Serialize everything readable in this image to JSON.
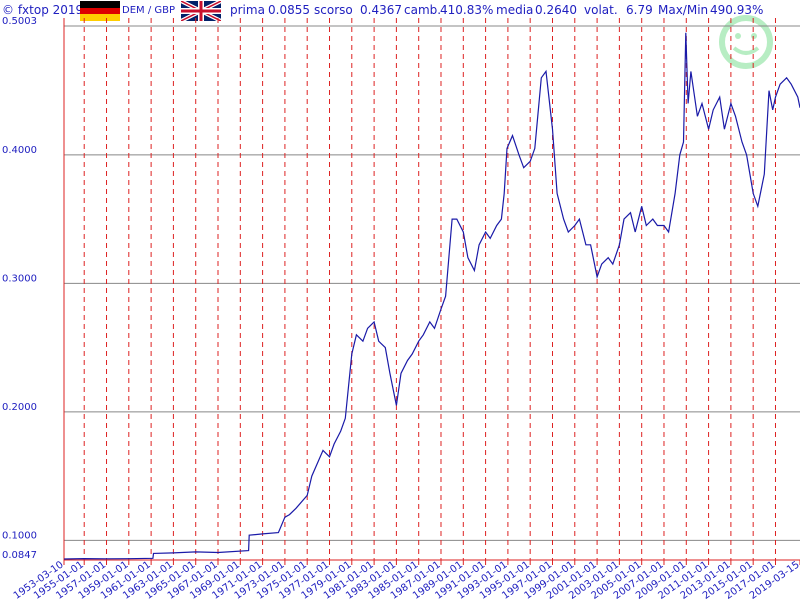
{
  "header": {
    "copyright": "© fxtop 2019",
    "pair": "DEM / GBP",
    "first_label": "prima",
    "first_value": "0.0855",
    "last_label": "scorso",
    "last_value": "0.4367",
    "change_label": "camb.",
    "change_value": "410.83%",
    "mean_label": "media",
    "mean_value": "0.2640",
    "volat_label": "volat.",
    "volat_value": "6.79",
    "maxmin_label": "Max/Min",
    "maxmin_value": "490.93%"
  },
  "colors": {
    "line": "#1a1aa8",
    "text": "#2020c0",
    "vgrid": "#dd2222",
    "hgrid": "#888888"
  },
  "icons": {
    "flag_left": "germany-flag-icon",
    "flag_right": "uk-flag-icon",
    "watermark": "fxtop-smiley-watermark"
  },
  "chart_data": {
    "type": "line",
    "title": "",
    "xlabel": "",
    "ylabel": "",
    "series": [
      {
        "x": [
          "1953-03-10",
          "1955-01-01",
          "1957-01-01",
          "1959-01-01",
          "1961-03-01",
          "1961-03-20",
          "1963-01-01",
          "1965-01-01",
          "1967-01-01",
          "1969-10-01",
          "1969-10-20",
          "1971-01-01",
          "1972-06-01",
          "1973-01-01",
          "1973-06-01",
          "1974-01-01",
          "1975-01-01",
          "1975-06-01",
          "1976-06-01",
          "1977-01-01",
          "1977-06-01",
          "1978-01-01",
          "1978-06-01",
          "1979-01-01",
          "1979-06-01",
          "1980-01-01",
          "1980-06-01",
          "1981-01-01",
          "1981-06-01",
          "1982-01-01",
          "1982-06-01",
          "1983-01-01",
          "1983-06-01",
          "1984-01-01",
          "1984-06-01",
          "1985-01-01",
          "1985-06-01",
          "1986-01-01",
          "1986-06-01",
          "1987-01-01",
          "1987-06-01",
          "1988-01-01",
          "1988-06-01",
          "1989-01-01",
          "1989-06-01",
          "1990-01-01",
          "1990-06-01",
          "1991-01-01",
          "1991-06-01",
          "1992-01-01",
          "1992-06-01",
          "1992-09-01",
          "1992-12-01",
          "1993-06-01",
          "1994-01-01",
          "1994-06-01",
          "1995-01-01",
          "1995-06-01",
          "1996-01-01",
          "1996-06-01",
          "1997-01-01",
          "1997-06-01",
          "1998-01-01",
          "1998-06-01",
          "1999-01-01",
          "1999-06-01",
          "2000-01-01",
          "2000-06-01",
          "2001-01-01",
          "2001-06-01",
          "2002-01-01",
          "2002-06-01",
          "2003-01-01",
          "2003-06-01",
          "2004-01-01",
          "2004-06-01",
          "2005-01-01",
          "2005-06-01",
          "2006-01-01",
          "2006-06-01",
          "2007-01-01",
          "2007-06-01",
          "2008-01-01",
          "2008-06-01",
          "2008-10-01",
          "2008-12-15",
          "2009-03-01",
          "2009-06-01",
          "2010-01-01",
          "2010-06-01",
          "2011-01-01",
          "2011-06-01",
          "2012-01-01",
          "2012-06-01",
          "2013-01-01",
          "2013-06-01",
          "2014-01-01",
          "2014-06-01",
          "2015-01-01",
          "2015-06-01",
          "2016-01-01",
          "2016-06-01",
          "2016-10-01",
          "2017-01-01",
          "2017-06-01",
          "2018-01-01",
          "2018-06-01",
          "2019-01-01",
          "2019-03-15"
        ],
        "values": [
          0.0855,
          0.0858,
          0.0856,
          0.0857,
          0.086,
          0.0898,
          0.0902,
          0.091,
          0.0905,
          0.092,
          0.104,
          0.105,
          0.106,
          0.118,
          0.12,
          0.125,
          0.135,
          0.15,
          0.17,
          0.165,
          0.175,
          0.185,
          0.195,
          0.245,
          0.26,
          0.255,
          0.265,
          0.27,
          0.255,
          0.25,
          0.23,
          0.205,
          0.23,
          0.24,
          0.245,
          0.255,
          0.26,
          0.27,
          0.265,
          0.28,
          0.29,
          0.35,
          0.35,
          0.34,
          0.32,
          0.31,
          0.33,
          0.34,
          0.335,
          0.345,
          0.35,
          0.37,
          0.405,
          0.415,
          0.4,
          0.39,
          0.395,
          0.405,
          0.46,
          0.465,
          0.42,
          0.37,
          0.35,
          0.34,
          0.345,
          0.35,
          0.33,
          0.33,
          0.305,
          0.315,
          0.32,
          0.315,
          0.33,
          0.35,
          0.355,
          0.34,
          0.36,
          0.345,
          0.35,
          0.345,
          0.345,
          0.34,
          0.37,
          0.4,
          0.41,
          0.495,
          0.44,
          0.465,
          0.43,
          0.44,
          0.42,
          0.435,
          0.445,
          0.42,
          0.44,
          0.43,
          0.41,
          0.4,
          0.37,
          0.36,
          0.385,
          0.45,
          0.435,
          0.445,
          0.455,
          0.46,
          0.455,
          0.445,
          0.4367
        ]
      }
    ],
    "x_ticks": [
      "1953-03-10",
      "1955-01-01",
      "1957-01-01",
      "1959-01-01",
      "1961-01-01",
      "1963-01-01",
      "1965-01-01",
      "1967-01-01",
      "1969-01-01",
      "1971-01-01",
      "1973-01-01",
      "1975-01-01",
      "1977-01-01",
      "1979-01-01",
      "1981-01-01",
      "1983-01-01",
      "1985-01-01",
      "1987-01-01",
      "1989-01-01",
      "1991-01-01",
      "1993-01-01",
      "1995-01-01",
      "1997-01-01",
      "1999-01-01",
      "2001-01-01",
      "2003-01-01",
      "2005-01-01",
      "2007-01-01",
      "2009-01-01",
      "2011-01-01",
      "2013-01-01",
      "2015-01-01",
      "2017-01-01",
      "2019-03-15"
    ],
    "x_range": [
      "1953-03-10",
      "2019-03-15"
    ],
    "y_ticks": [
      "0.0847",
      "0.1000",
      "0.2000",
      "0.3000",
      "0.4000",
      "0.5003"
    ],
    "ylim": [
      0.0847,
      0.5003
    ],
    "grid": true,
    "legend": "none"
  }
}
